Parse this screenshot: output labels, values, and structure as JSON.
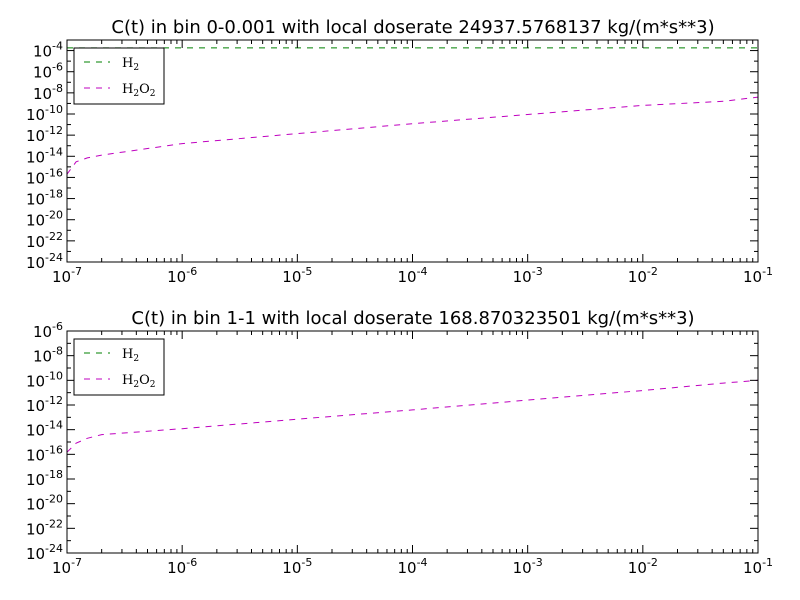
{
  "chart_data": [
    {
      "type": "line",
      "title": "C(t) in bin 0-0.001 with local doserate 24937.5768137 kg/(m*s**3)",
      "xscale": "log",
      "yscale": "log",
      "xlim": [
        1e-07,
        0.1
      ],
      "ylim": [
        1e-24,
        0.001
      ],
      "x_tick_labels": [
        {
          "base": "10",
          "exp": "-7"
        },
        {
          "base": "10",
          "exp": "-6"
        },
        {
          "base": "10",
          "exp": "-5"
        },
        {
          "base": "10",
          "exp": "-4"
        },
        {
          "base": "10",
          "exp": "-3"
        },
        {
          "base": "10",
          "exp": "-2"
        },
        {
          "base": "10",
          "exp": "-1"
        }
      ],
      "y_tick_labels": [
        {
          "base": "10",
          "exp": "-4"
        },
        {
          "base": "10",
          "exp": "-6"
        },
        {
          "base": "10",
          "exp": "-8"
        },
        {
          "base": "10",
          "exp": "-10"
        },
        {
          "base": "10",
          "exp": "-12"
        },
        {
          "base": "10",
          "exp": "-14"
        },
        {
          "base": "10",
          "exp": "-16"
        },
        {
          "base": "10",
          "exp": "-18"
        },
        {
          "base": "10",
          "exp": "-20"
        },
        {
          "base": "10",
          "exp": "-22"
        },
        {
          "base": "10",
          "exp": "-24"
        }
      ],
      "legend_position": "top-left",
      "series": [
        {
          "name": "H2",
          "label_main": "H",
          "label_sub": "2",
          "color": "#008000",
          "dash": "dashed",
          "x": [
            1e-07,
            1e-06,
            1e-05,
            0.0001,
            0.001,
            0.01,
            0.1
          ],
          "y": [
            0.00018,
            0.00018,
            0.00018,
            0.00018,
            0.00018,
            0.00018,
            0.00018
          ]
        },
        {
          "name": "H2O2",
          "label_parts": [
            "H",
            "2",
            "O",
            "2"
          ],
          "color": "#bf00bf",
          "dash": "dashed",
          "x": [
            1e-07,
            1.2e-07,
            1.5e-07,
            2e-07,
            1e-06,
            1e-05,
            0.0001,
            0.001,
            0.01,
            0.05,
            0.1
          ],
          "y": [
            2e-16,
            3e-15,
            7e-15,
            1.3e-14,
            1.6e-13,
            1.4e-12,
            1.2e-11,
            9e-11,
            6.5e-10,
            1.6e-09,
            4e-09
          ]
        }
      ]
    },
    {
      "type": "line",
      "title": "C(t) in bin 1-1 with local doserate 168.870323501 kg/(m*s**3)",
      "xscale": "log",
      "yscale": "log",
      "xlim": [
        1e-07,
        0.1
      ],
      "ylim": [
        1e-24,
        1e-06
      ],
      "x_tick_labels": [
        {
          "base": "10",
          "exp": "-7"
        },
        {
          "base": "10",
          "exp": "-6"
        },
        {
          "base": "10",
          "exp": "-5"
        },
        {
          "base": "10",
          "exp": "-4"
        },
        {
          "base": "10",
          "exp": "-3"
        },
        {
          "base": "10",
          "exp": "-2"
        },
        {
          "base": "10",
          "exp": "-1"
        }
      ],
      "y_tick_labels": [
        {
          "base": "10",
          "exp": "-6"
        },
        {
          "base": "10",
          "exp": "-8"
        },
        {
          "base": "10",
          "exp": "-10"
        },
        {
          "base": "10",
          "exp": "-12"
        },
        {
          "base": "10",
          "exp": "-14"
        },
        {
          "base": "10",
          "exp": "-16"
        },
        {
          "base": "10",
          "exp": "-18"
        },
        {
          "base": "10",
          "exp": "-20"
        },
        {
          "base": "10",
          "exp": "-22"
        },
        {
          "base": "10",
          "exp": "-24"
        }
      ],
      "legend_position": "top-left",
      "series": [
        {
          "name": "H2",
          "label_main": "H",
          "label_sub": "2",
          "color": "#008000",
          "dash": "dashed",
          "x": [],
          "y": []
        },
        {
          "name": "H2O2",
          "label_parts": [
            "H",
            "2",
            "O",
            "2"
          ],
          "color": "#bf00bf",
          "dash": "dashed",
          "x": [
            1e-07,
            1.2e-07,
            1.5e-07,
            2e-07,
            1e-06,
            1e-05,
            0.0001,
            0.001,
            0.01,
            0.05,
            0.1
          ],
          "y": [
            1.5e-16,
            8e-16,
            2e-15,
            4e-15,
            1.2e-14,
            7e-14,
            4e-13,
            2.5e-12,
            1.5e-11,
            6e-11,
            1e-10
          ]
        }
      ]
    }
  ]
}
